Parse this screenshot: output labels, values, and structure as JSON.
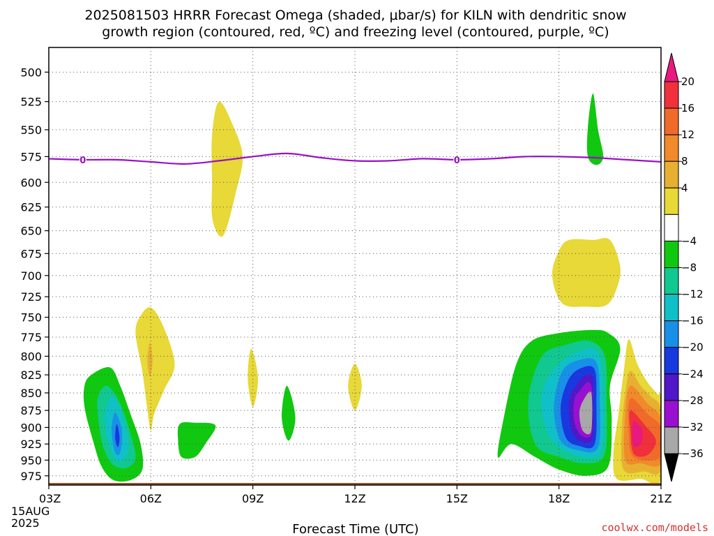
{
  "chart_data": {
    "type": "heatmap",
    "title_line1": "2025081503 HRRR Forecast Omega (shaded, μbar/s) for KILN with dendritic snow",
    "title_line2": "growth region (contoured, red, ºC) and freezing level (contoured, purple, ºC)",
    "xlabel": "Forecast Time (UTC)",
    "ylabel": "",
    "x_ticks": [
      "03Z",
      "06Z",
      "09Z",
      "12Z",
      "15Z",
      "18Z",
      "21Z"
    ],
    "x_tick_values": [
      3,
      6,
      9,
      12,
      15,
      18,
      21
    ],
    "x_date_label": [
      "15AUG",
      "2025"
    ],
    "xlim": [
      3,
      21
    ],
    "y_ticks": [
      500,
      525,
      550,
      575,
      600,
      625,
      650,
      675,
      700,
      725,
      750,
      775,
      800,
      825,
      850,
      875,
      900,
      925,
      950,
      975
    ],
    "ylim": [
      480,
      990
    ],
    "y_scale": "log-pressure",
    "grid": true,
    "colorbar": {
      "labels": [
        "20",
        "16",
        "12",
        "8",
        "4",
        "−4",
        "−8",
        "−12",
        "−16",
        "−20",
        "−24",
        "−28",
        "−32",
        "−36"
      ],
      "bands": [
        {
          "range": "> 20",
          "color": "#e8197f"
        },
        {
          "range": "16 to 20",
          "color": "#f0303a"
        },
        {
          "range": "12 to 16",
          "color": "#f06a2a"
        },
        {
          "range": "8 to 12",
          "color": "#f08a2a"
        },
        {
          "range": "4 to 8",
          "color": "#e8b030"
        },
        {
          "range": "0 to 4",
          "color": "#e8d838"
        },
        {
          "range": "-4 to 4",
          "color": "#ffffff"
        },
        {
          "range": "-8 to -4",
          "color": "#10c810"
        },
        {
          "range": "-12 to -8",
          "color": "#10c890"
        },
        {
          "range": "-16 to -12",
          "color": "#10c0c8"
        },
        {
          "range": "-20 to -16",
          "color": "#1890e8"
        },
        {
          "range": "-24 to -20",
          "color": "#1838e0"
        },
        {
          "range": "-28 to -24",
          "color": "#5018c8"
        },
        {
          "range": "-32 to -28",
          "color": "#9a10d0"
        },
        {
          "range": "-36 to -32",
          "color": "#a8a8a8"
        },
        {
          "range": "< -36",
          "color": "#000000"
        }
      ]
    },
    "freezing_level": {
      "label": "0",
      "color": "#9a10c8",
      "points": [
        [
          3,
          577
        ],
        [
          4,
          578
        ],
        [
          5,
          578
        ],
        [
          6,
          580
        ],
        [
          7,
          582
        ],
        [
          8,
          579
        ],
        [
          9,
          575
        ],
        [
          10,
          572
        ],
        [
          11,
          576
        ],
        [
          12,
          579
        ],
        [
          13,
          579
        ],
        [
          14,
          577
        ],
        [
          15,
          578
        ],
        [
          16,
          577
        ],
        [
          17,
          575
        ],
        [
          18,
          575
        ],
        [
          19,
          576
        ],
        [
          20,
          578
        ],
        [
          21,
          580
        ]
      ],
      "label_x": [
        4,
        15
      ]
    },
    "omega_regions": [
      {
        "value": "0 to 4",
        "color": "#e8d838",
        "points": [
          [
            8.0,
            525
          ],
          [
            8.4,
            545
          ],
          [
            8.7,
            575
          ],
          [
            8.5,
            610
          ],
          [
            8.2,
            650
          ],
          [
            8.0,
            655
          ],
          [
            7.8,
            635
          ],
          [
            7.8,
            600
          ],
          [
            7.8,
            555
          ]
        ]
      },
      {
        "value": "0 to 4",
        "color": "#e8d838",
        "points": [
          [
            19.0,
            660
          ],
          [
            19.5,
            660
          ],
          [
            19.8,
            690
          ],
          [
            19.7,
            715
          ],
          [
            19.4,
            735
          ],
          [
            18.8,
            737
          ],
          [
            18.1,
            733
          ],
          [
            17.8,
            700
          ],
          [
            18.0,
            672
          ],
          [
            18.3,
            660
          ]
        ]
      },
      {
        "value": "0 to 4",
        "color": "#e8d838",
        "points": [
          [
            6.0,
            738
          ],
          [
            6.35,
            760
          ],
          [
            6.7,
            810
          ],
          [
            6.4,
            845
          ],
          [
            6.1,
            880
          ],
          [
            6.0,
            905
          ],
          [
            5.9,
            875
          ],
          [
            5.75,
            820
          ],
          [
            5.55,
            770
          ],
          [
            5.7,
            748
          ]
        ]
      },
      {
        "value": "4 to 8",
        "color": "#e8b030",
        "points": [
          [
            5.97,
            782
          ],
          [
            6.05,
            805
          ],
          [
            5.97,
            828
          ],
          [
            5.9,
            805
          ]
        ]
      },
      {
        "value": "0 to 4",
        "color": "#e8d838",
        "points": [
          [
            8.95,
            790
          ],
          [
            9.15,
            830
          ],
          [
            9.0,
            870
          ],
          [
            8.85,
            830
          ]
        ]
      },
      {
        "value": "0 to 4",
        "color": "#e8d838",
        "points": [
          [
            12.0,
            810
          ],
          [
            12.2,
            840
          ],
          [
            12.0,
            875
          ],
          [
            11.8,
            840
          ]
        ]
      },
      {
        "value": "0 to 4",
        "color": "#e8d838",
        "points": [
          [
            20.05,
            778
          ],
          [
            20.3,
            810
          ],
          [
            20.6,
            835
          ],
          [
            20.9,
            852
          ],
          [
            21.0,
            860
          ],
          [
            21.0,
            980
          ],
          [
            20.4,
            980
          ],
          [
            19.7,
            980
          ],
          [
            19.6,
            940
          ],
          [
            19.75,
            880
          ],
          [
            19.9,
            822
          ]
        ]
      },
      {
        "value": "4 to 8",
        "color": "#e8b030",
        "points": [
          [
            20.1,
            820
          ],
          [
            20.4,
            840
          ],
          [
            20.7,
            855
          ],
          [
            21.0,
            875
          ],
          [
            21.0,
            965
          ],
          [
            20.5,
            968
          ],
          [
            19.9,
            965
          ],
          [
            19.85,
            900
          ],
          [
            19.95,
            850
          ]
        ]
      },
      {
        "value": "8 to 12",
        "color": "#f08a2a",
        "points": [
          [
            20.1,
            840
          ],
          [
            20.6,
            865
          ],
          [
            21.0,
            888
          ],
          [
            21.0,
            955
          ],
          [
            20.4,
            955
          ],
          [
            19.95,
            950
          ],
          [
            19.95,
            880
          ]
        ]
      },
      {
        "value": "12 to 16",
        "color": "#f06a2a",
        "points": [
          [
            20.1,
            858
          ],
          [
            20.6,
            880
          ],
          [
            21.0,
            900
          ],
          [
            21.0,
            945
          ],
          [
            20.2,
            945
          ],
          [
            20.05,
            905
          ]
        ]
      },
      {
        "value": "16 to 20",
        "color": "#f0303a",
        "points": [
          [
            20.1,
            875
          ],
          [
            20.5,
            895
          ],
          [
            20.85,
            920
          ],
          [
            20.6,
            942
          ],
          [
            20.2,
            940
          ],
          [
            20.1,
            905
          ]
        ]
      },
      {
        "value": "> 20",
        "color": "#e8197f",
        "points": [
          [
            20.2,
            890
          ],
          [
            20.45,
            905
          ],
          [
            20.4,
            925
          ],
          [
            20.2,
            928
          ],
          [
            20.15,
            908
          ]
        ]
      },
      {
        "value": "-8 to -4",
        "color": "#10c810",
        "points": [
          [
            19.0,
            518
          ],
          [
            19.15,
            550
          ],
          [
            19.3,
            575
          ],
          [
            19.1,
            583
          ],
          [
            18.85,
            575
          ],
          [
            18.85,
            548
          ]
        ]
      },
      {
        "value": "-8 to -4",
        "color": "#10c810",
        "points": [
          [
            4.25,
            825
          ],
          [
            4.8,
            815
          ],
          [
            5.1,
            840
          ],
          [
            5.4,
            880
          ],
          [
            5.7,
            925
          ],
          [
            5.75,
            965
          ],
          [
            5.4,
            982
          ],
          [
            4.9,
            982
          ],
          [
            4.55,
            960
          ],
          [
            4.3,
            920
          ],
          [
            4.05,
            870
          ],
          [
            4.05,
            840
          ]
        ]
      },
      {
        "value": "-12 to -8",
        "color": "#10c890",
        "points": [
          [
            4.7,
            840
          ],
          [
            5.05,
            860
          ],
          [
            5.35,
            900
          ],
          [
            5.55,
            945
          ],
          [
            5.3,
            962
          ],
          [
            4.9,
            958
          ],
          [
            4.6,
            930
          ],
          [
            4.45,
            885
          ],
          [
            4.45,
            855
          ]
        ]
      },
      {
        "value": "-16 to -12",
        "color": "#10c0c8",
        "points": [
          [
            4.85,
            855
          ],
          [
            5.15,
            880
          ],
          [
            5.35,
            925
          ],
          [
            5.2,
            950
          ],
          [
            4.95,
            948
          ],
          [
            4.75,
            920
          ],
          [
            4.65,
            885
          ]
        ]
      },
      {
        "value": "-20 to -16",
        "color": "#1890e8",
        "points": [
          [
            4.95,
            878
          ],
          [
            5.15,
            905
          ],
          [
            5.1,
            938
          ],
          [
            4.95,
            938
          ],
          [
            4.85,
            905
          ]
        ]
      },
      {
        "value": "-24 to -20",
        "color": "#1838e0",
        "points": [
          [
            5.0,
            895
          ],
          [
            5.08,
            915
          ],
          [
            5.03,
            930
          ],
          [
            4.95,
            915
          ]
        ]
      },
      {
        "value": "-8 to -4",
        "color": "#10c810",
        "points": [
          [
            6.85,
            895
          ],
          [
            7.3,
            893
          ],
          [
            7.9,
            897
          ],
          [
            7.6,
            925
          ],
          [
            7.3,
            945
          ],
          [
            6.9,
            945
          ],
          [
            6.8,
            920
          ]
        ]
      },
      {
        "value": "-8 to -4",
        "color": "#10c810",
        "points": [
          [
            10.0,
            840
          ],
          [
            10.25,
            885
          ],
          [
            10.05,
            920
          ],
          [
            9.85,
            885
          ]
        ]
      },
      {
        "value": "-8 to -4",
        "color": "#10c810",
        "points": [
          [
            17.2,
            780
          ],
          [
            18.0,
            770
          ],
          [
            19.0,
            766
          ],
          [
            19.45,
            770
          ],
          [
            19.8,
            790
          ],
          [
            19.5,
            840
          ],
          [
            19.55,
            890
          ],
          [
            19.45,
            960
          ],
          [
            18.8,
            975
          ],
          [
            18.0,
            965
          ],
          [
            17.3,
            945
          ],
          [
            16.6,
            925
          ],
          [
            16.2,
            945
          ],
          [
            16.4,
            880
          ],
          [
            16.75,
            810
          ]
        ]
      },
      {
        "value": "-12 to -8",
        "color": "#10c890",
        "points": [
          [
            17.5,
            800
          ],
          [
            18.2,
            785
          ],
          [
            18.9,
            780
          ],
          [
            19.35,
            800
          ],
          [
            19.4,
            860
          ],
          [
            19.35,
            940
          ],
          [
            18.8,
            955
          ],
          [
            18.0,
            945
          ],
          [
            17.3,
            925
          ],
          [
            17.1,
            860
          ]
        ]
      },
      {
        "value": "-16 to -12",
        "color": "#10c0c8",
        "points": [
          [
            17.9,
            815
          ],
          [
            18.5,
            795
          ],
          [
            19.15,
            795
          ],
          [
            19.3,
            860
          ],
          [
            19.25,
            935
          ],
          [
            18.7,
            945
          ],
          [
            18.0,
            930
          ],
          [
            17.6,
            900
          ],
          [
            17.5,
            850
          ]
        ]
      },
      {
        "value": "-20 to -16",
        "color": "#1890e8",
        "points": [
          [
            18.1,
            820
          ],
          [
            18.6,
            805
          ],
          [
            19.1,
            808
          ],
          [
            19.2,
            860
          ],
          [
            19.15,
            930
          ],
          [
            18.6,
            935
          ],
          [
            18.05,
            920
          ],
          [
            17.85,
            870
          ]
        ]
      },
      {
        "value": "-24 to -20",
        "color": "#1838e0",
        "points": [
          [
            18.3,
            830
          ],
          [
            18.7,
            815
          ],
          [
            19.05,
            818
          ],
          [
            19.1,
            860
          ],
          [
            19.05,
            925
          ],
          [
            18.6,
            928
          ],
          [
            18.2,
            915
          ],
          [
            18.05,
            870
          ]
        ]
      },
      {
        "value": "-28 to -24",
        "color": "#5018c8",
        "points": [
          [
            18.5,
            840
          ],
          [
            18.8,
            825
          ],
          [
            19.0,
            830
          ],
          [
            19.0,
            865
          ],
          [
            18.98,
            918
          ],
          [
            18.6,
            920
          ],
          [
            18.35,
            900
          ],
          [
            18.3,
            860
          ]
        ]
      },
      {
        "value": "-32 to -28",
        "color": "#9a10d0",
        "points": [
          [
            18.6,
            848
          ],
          [
            18.85,
            835
          ],
          [
            18.97,
            845
          ],
          [
            18.97,
            880
          ],
          [
            18.95,
            912
          ],
          [
            18.65,
            912
          ],
          [
            18.45,
            890
          ],
          [
            18.45,
            860
          ]
        ]
      },
      {
        "value": "-36 to -32",
        "color": "#a8a8a8",
        "points": [
          [
            18.7,
            862
          ],
          [
            18.95,
            850
          ],
          [
            18.95,
            905
          ],
          [
            18.7,
            905
          ],
          [
            18.6,
            880
          ]
        ]
      }
    ],
    "ground": {
      "color": "#9a5030",
      "level": 990
    }
  },
  "credit": "coolwx.com/models"
}
